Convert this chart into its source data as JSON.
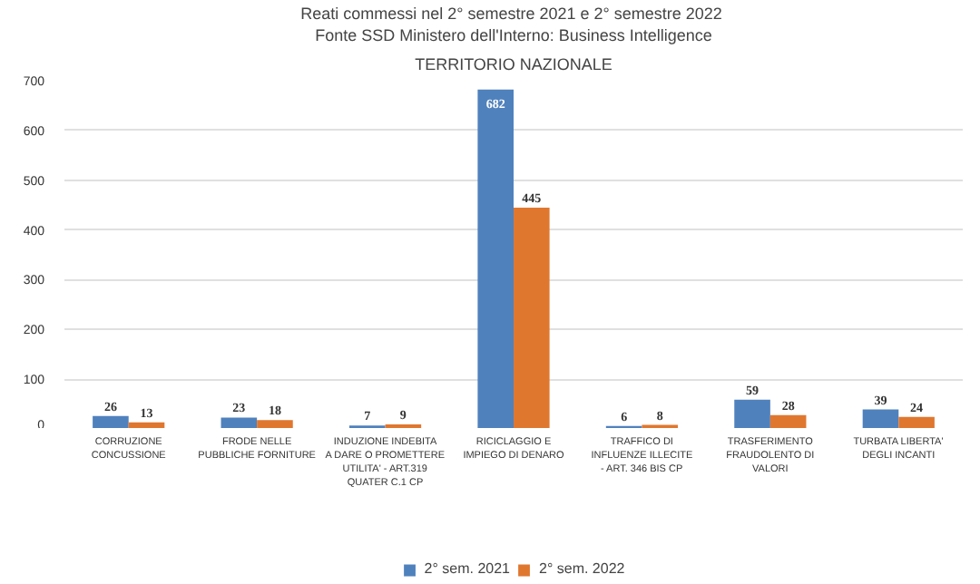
{
  "chart_data": {
    "type": "bar",
    "title": "Reati commessi nel 2° semestre 2021 e  2° semestre 2022",
    "subtitle": "Fonte SSD Ministero dell'Interno: Business Intelligence",
    "annotations": [
      "TERRITORIO NAZIONALE"
    ],
    "categories": [
      "CORRUZIONE CONCUSSIONE",
      "FRODE NELLE PUBBLICHE FORNITURE",
      "INDUZIONE INDEBITA A DARE O PROMETTERE UTILITA' - ART.319 QUATER C.1 CP",
      "RICICLAGGIO E IMPIEGO DI DENARO",
      "TRAFFICO DI INFLUENZE ILLECITE - ART. 346 BIS CP",
      "TRASFERIMENTO FRAUDOLENTO DI VALORI",
      "TURBATA LIBERTA' DEGLI INCANTI"
    ],
    "series": [
      {
        "name": "2° sem. 2021",
        "color": "#4f81bd",
        "values": [
          26,
          23,
          7,
          682,
          6,
          59,
          39
        ]
      },
      {
        "name": "2° sem. 2022",
        "color": "#e0772f",
        "values": [
          13,
          18,
          9,
          445,
          8,
          28,
          24
        ]
      }
    ],
    "ylim": [
      0,
      700
    ],
    "yticks": [
      0,
      100,
      200,
      300,
      400,
      500,
      600,
      700
    ],
    "grid": "y",
    "legend": "bottom",
    "data_labels": true
  }
}
